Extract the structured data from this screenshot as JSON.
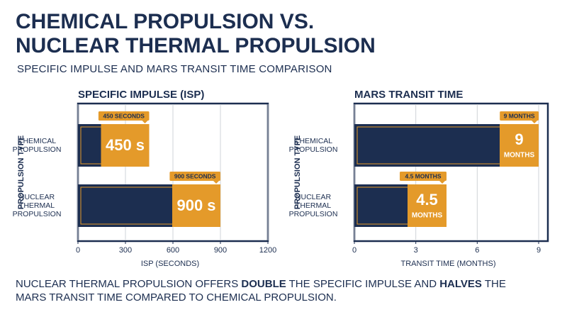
{
  "title": [
    "CHEMICAL PROPULSION VS.",
    "NUCLEAR THERMAL PROPULSION"
  ],
  "subtitle": "SPECIFIC IMPULSE AND MARS TRANSIT TIME COMPARISON",
  "chart_data": [
    {
      "type": "bar",
      "orientation": "horizontal",
      "title": "SPECIFIC IMPULSE (ISP)",
      "y_label": "PROPULSION TYPE",
      "x_label": "ISP (SECONDS)",
      "categories": [
        "CHEMICAL PROPULSION",
        "NUCLEAR THERMAL PROPULSION"
      ],
      "values": [
        450,
        900
      ],
      "value_labels": [
        "450 s",
        "900 s"
      ],
      "value_tags": [
        "450 SECONDS",
        "900 SECONDS"
      ],
      "xlim": [
        0,
        1200
      ],
      "xticks": [
        0,
        300,
        600,
        900,
        1200
      ],
      "grid": true,
      "color": "#1c2e50",
      "highlight_color": "#e49a2a"
    },
    {
      "type": "bar",
      "orientation": "horizontal",
      "title": "MARS TRANSIT TIME",
      "y_label": "PROPULSION TYPE",
      "x_label": "TRANSIT TIME (MONTHS)",
      "categories": [
        "CHEMICAL PROPULSION",
        "NUCLEAR THERMAL PROPULSION"
      ],
      "values": [
        9,
        4.5
      ],
      "value_labels": [
        "9",
        "4.5"
      ],
      "value_unit": "MONTHS",
      "value_tags": [
        "9 MONTHS",
        "4.5 MONTHS"
      ],
      "xlim": [
        0,
        9.45
      ],
      "xticks": [
        0,
        3,
        6,
        9
      ],
      "grid": true,
      "color": "#1c2e50",
      "highlight_color": "#e49a2a"
    }
  ],
  "footer": [
    {
      "text": "NUCLEAR THERMAL PROPULSION OFFERS ",
      "bold": false
    },
    {
      "text": "DOUBLE",
      "bold": true
    },
    {
      "text": " THE SPECIFIC IMPULSE AND ",
      "bold": false
    },
    {
      "text": "HALVES",
      "bold": true
    },
    {
      "text": " THE MARS TRANSIT TIME COMPARED TO CHEMICAL PROPULSION.",
      "bold": false
    }
  ]
}
